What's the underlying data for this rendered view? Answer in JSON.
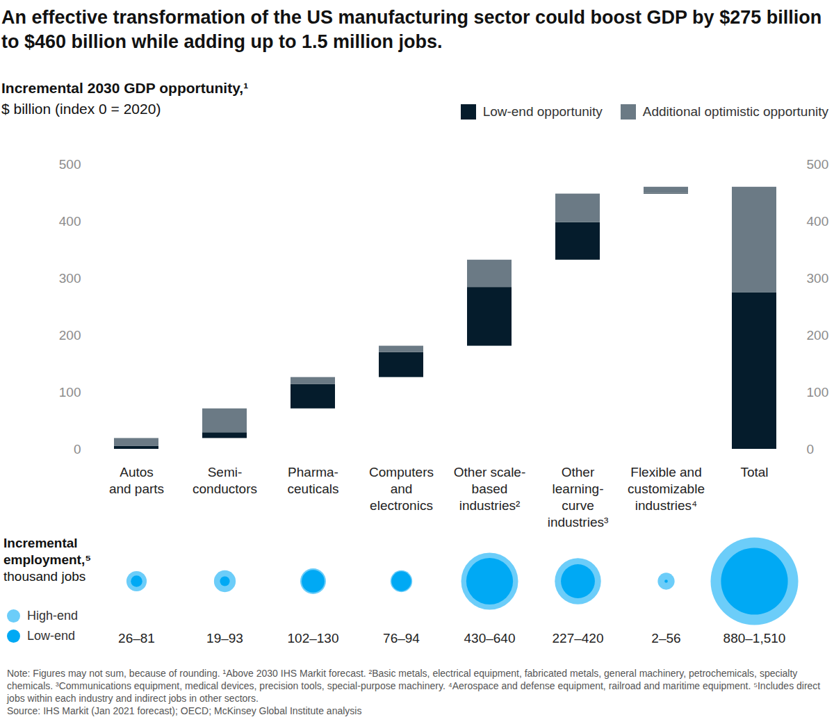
{
  "chart_data": [
    {
      "type": "waterfall",
      "title": "An effective transformation of the US manufacturing sector could boost GDP by $275 billion to $460 billion while adding up to 1.5 million jobs.",
      "y_label": "Incremental 2030 GDP opportunity,¹",
      "y_units": "$ billion (index 0 = 2020)",
      "categories": [
        "Autos\nand parts",
        "Semi-\nconductors",
        "Pharma-\nceuticals",
        "Computers\nand\nelectronics",
        "Other scale-\nbased\nindustries²",
        "Other\nlearning-\ncurve\nindustries³",
        "Flexible and\ncustomizable\nindustries⁴",
        "Total"
      ],
      "series": [
        {
          "name": "Low-end opportunity",
          "color": "#051c2c",
          "values": [
            5,
            10,
            43,
            44,
            103,
            66,
            1,
            275
          ]
        },
        {
          "name": "Additional optimistic opportunity",
          "color": "#6b7a85",
          "values": [
            14,
            42,
            12,
            11,
            48,
            50,
            11,
            185
          ]
        }
      ],
      "stacked": true,
      "ylim": [
        0,
        500
      ],
      "yticks": [
        0,
        100,
        200,
        300,
        400,
        500
      ],
      "grid": false,
      "legend": "top-right",
      "note": "Note: Figures may not sum, because of rounding. ¹Above 2030 IHS Markit forecast. ²Basic metals, electrical equipment, fabricated metals, general machinery, petrochemicals, specialty chemicals. ³Communications equipment, medical devices, precision tools, special-purpose machinery. ⁴Aerospace and defense equipment, railroad and maritime equipment. ⁵Includes direct jobs within each industry and indirect jobs in other sectors.",
      "source": "Source: IHS Markit (Jan 2021 forecast); OECD; McKinsey Global Institute analysis"
    },
    {
      "type": "bubble",
      "title": "Incremental employment,⁵",
      "subtitle": "thousand jobs",
      "categories": [
        null,
        null,
        null,
        null,
        null,
        null,
        null,
        null
      ],
      "series": [
        {
          "name": "High-end",
          "color": "#6ccdf9",
          "values": [
            81,
            93,
            130,
            94,
            640,
            420,
            56,
            1510
          ]
        },
        {
          "name": "Low-end",
          "color": "#00a9f4",
          "values": [
            26,
            19,
            102,
            76,
            430,
            227,
            2,
            880
          ]
        }
      ],
      "value_labels": [
        "26–81",
        "19–93",
        "102–130",
        "76–94",
        "430–640",
        "227–420",
        "2–56",
        "880–1,510"
      ],
      "legend": "bottom-left",
      "tick_labels": false
    }
  ]
}
